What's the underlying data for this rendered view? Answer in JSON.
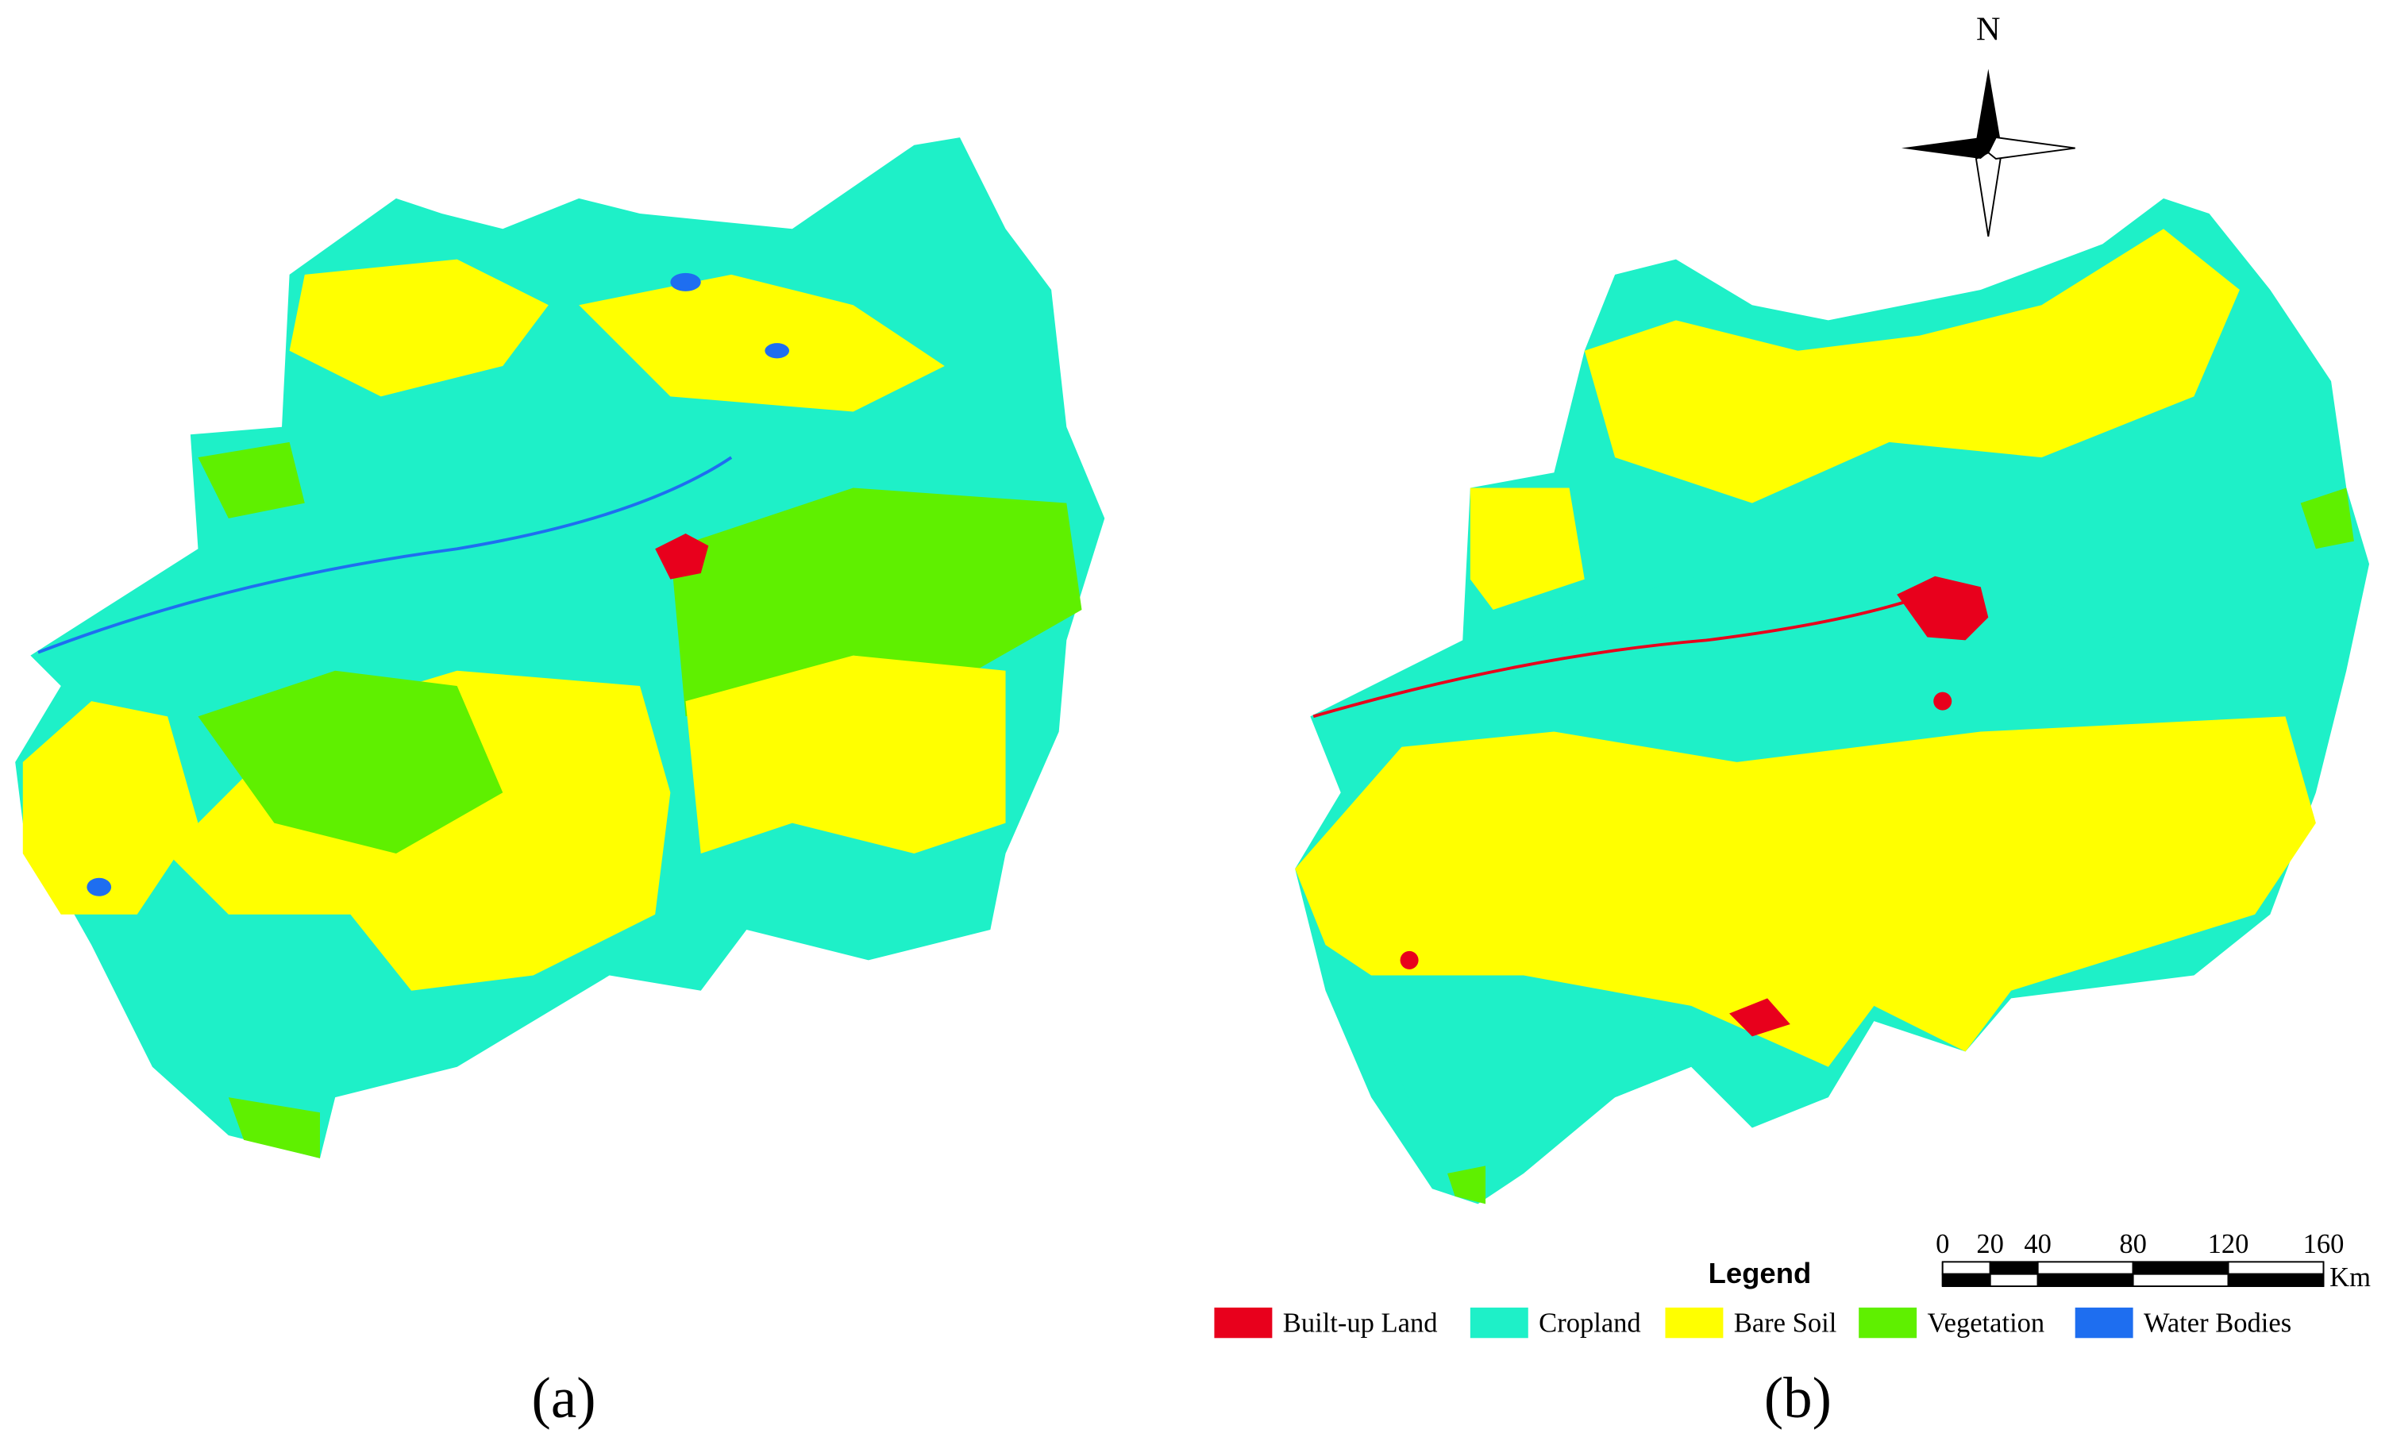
{
  "panels": [
    {
      "label": "(a)"
    },
    {
      "label": "(b)"
    }
  ],
  "north_arrow": {
    "label": "N"
  },
  "legend": {
    "title": "Legend",
    "items": [
      {
        "name": "Built-up Land",
        "color": "#e8001c"
      },
      {
        "name": "Cropland",
        "color": "#1ef0c8"
      },
      {
        "name": "Bare Soil",
        "color": "#ffff00"
      },
      {
        "name": "Vegetation",
        "color": "#5ff000"
      },
      {
        "name": "Water Bodies",
        "color": "#1e6ef0"
      }
    ]
  },
  "scale_bar": {
    "ticks": [
      0,
      20,
      40,
      80,
      120,
      160
    ],
    "unit": "Km"
  }
}
